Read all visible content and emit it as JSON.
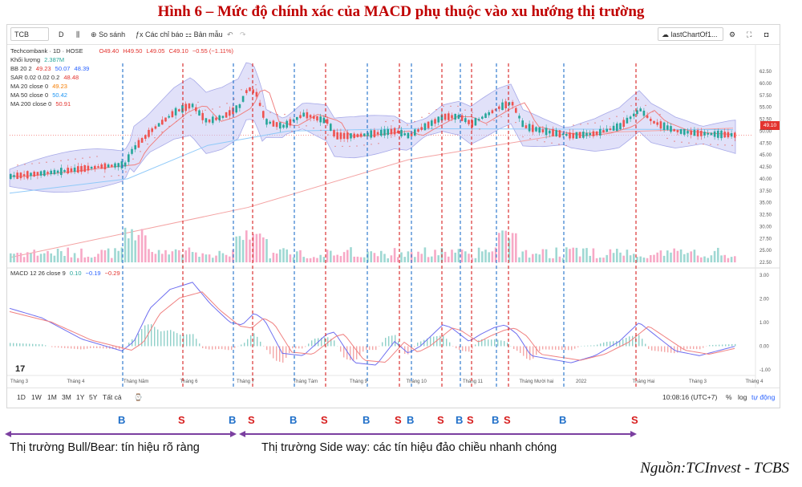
{
  "figure": {
    "title": "Hình 6 – Mức độ chính xác của MACD phụ thuộc vào xu hướng thị trường",
    "source": "Nguồn:TCInvest - TCBS"
  },
  "toolbar": {
    "symbol": "TCB",
    "interval": "D",
    "compare": "So sánh",
    "indicators": "Các chỉ báo",
    "templates": "Bản mẫu",
    "layout_name": "lastChartOf1..."
  },
  "legend": {
    "instrument": "Techcombank · 1D · HOSE",
    "ohlc": {
      "o": "O49.40",
      "h": "H49.50",
      "l": "L49.05",
      "c": "C49.10",
      "chg": "−0.55 (−1.11%)"
    },
    "volume": {
      "label": "Khối lượng",
      "value": "2.387M"
    },
    "bb": {
      "label": "BB 20 2",
      "v1": "49.23",
      "v2": "50.07",
      "v3": "48.39"
    },
    "sar": {
      "label": "SAR 0.02 0.02 0.2",
      "v": "48.48"
    },
    "ma20": {
      "label": "MA 20 close 0",
      "v": "49.23"
    },
    "ma50": {
      "label": "MA 50 close 0",
      "v": "50.42"
    },
    "ma200": {
      "label": "MA 200 close 0",
      "v": "50.91"
    },
    "macd": {
      "label": "MACD 12 26 close 9",
      "v1": "0.10",
      "v2": "−0.19",
      "v3": "−0.29"
    }
  },
  "price_axis": [
    "62.50",
    "60.00",
    "57.50",
    "55.00",
    "52.50",
    "50.00",
    "47.50",
    "45.00",
    "42.50",
    "40.00",
    "37.50",
    "35.00",
    "32.50",
    "30.00",
    "27.50",
    "25.00",
    "22.50"
  ],
  "current_price": "49.10",
  "macd_axis": [
    "3.00",
    "2.00",
    "1.00",
    "0.00",
    "-1.00"
  ],
  "time_axis": [
    "Tháng 3",
    "Tháng 4",
    "Tháng Năm",
    "Tháng 6",
    "Tháng 7",
    "Tháng Tám",
    "Tháng 9",
    "Tháng 10",
    "Tháng 11",
    "Tháng Mười hai",
    "2022",
    "Tháng Hai",
    "Tháng 3",
    "Tháng 4"
  ],
  "bottom": {
    "ranges": [
      "1D",
      "1W",
      "1M",
      "3M",
      "1Y",
      "5Y",
      "Tất cả"
    ],
    "clock": "10:08:16 (UTC+7)",
    "pct": "%",
    "log": "log",
    "auto": "tự động"
  },
  "signals": [
    {
      "t": "B",
      "x": 152
    },
    {
      "t": "S",
      "x": 227
    },
    {
      "t": "B",
      "x": 290
    },
    {
      "t": "S",
      "x": 314
    },
    {
      "t": "B",
      "x": 366
    },
    {
      "t": "S",
      "x": 405
    },
    {
      "t": "B",
      "x": 457
    },
    {
      "t": "S",
      "x": 497
    },
    {
      "t": "B",
      "x": 512
    },
    {
      "t": "S",
      "x": 550
    },
    {
      "t": "B",
      "x": 573
    },
    {
      "t": "S",
      "x": 587
    },
    {
      "t": "B",
      "x": 618
    },
    {
      "t": "S",
      "x": 633
    },
    {
      "t": "B",
      "x": 702
    },
    {
      "t": "S",
      "x": 792
    }
  ],
  "captions": {
    "bull_bear": "Thị trường Bull/Bear: tín hiệu rõ ràng",
    "sideway": "Thị trường Side way: các tín hiệu đảo chiều nhanh chóng"
  },
  "colors": {
    "buy": "#1f6fc9",
    "sell": "#d71e1e",
    "up": "#26a69a",
    "down": "#ef5350",
    "band": "#a7a9e8",
    "arrow": "#7b3fa0"
  }
}
